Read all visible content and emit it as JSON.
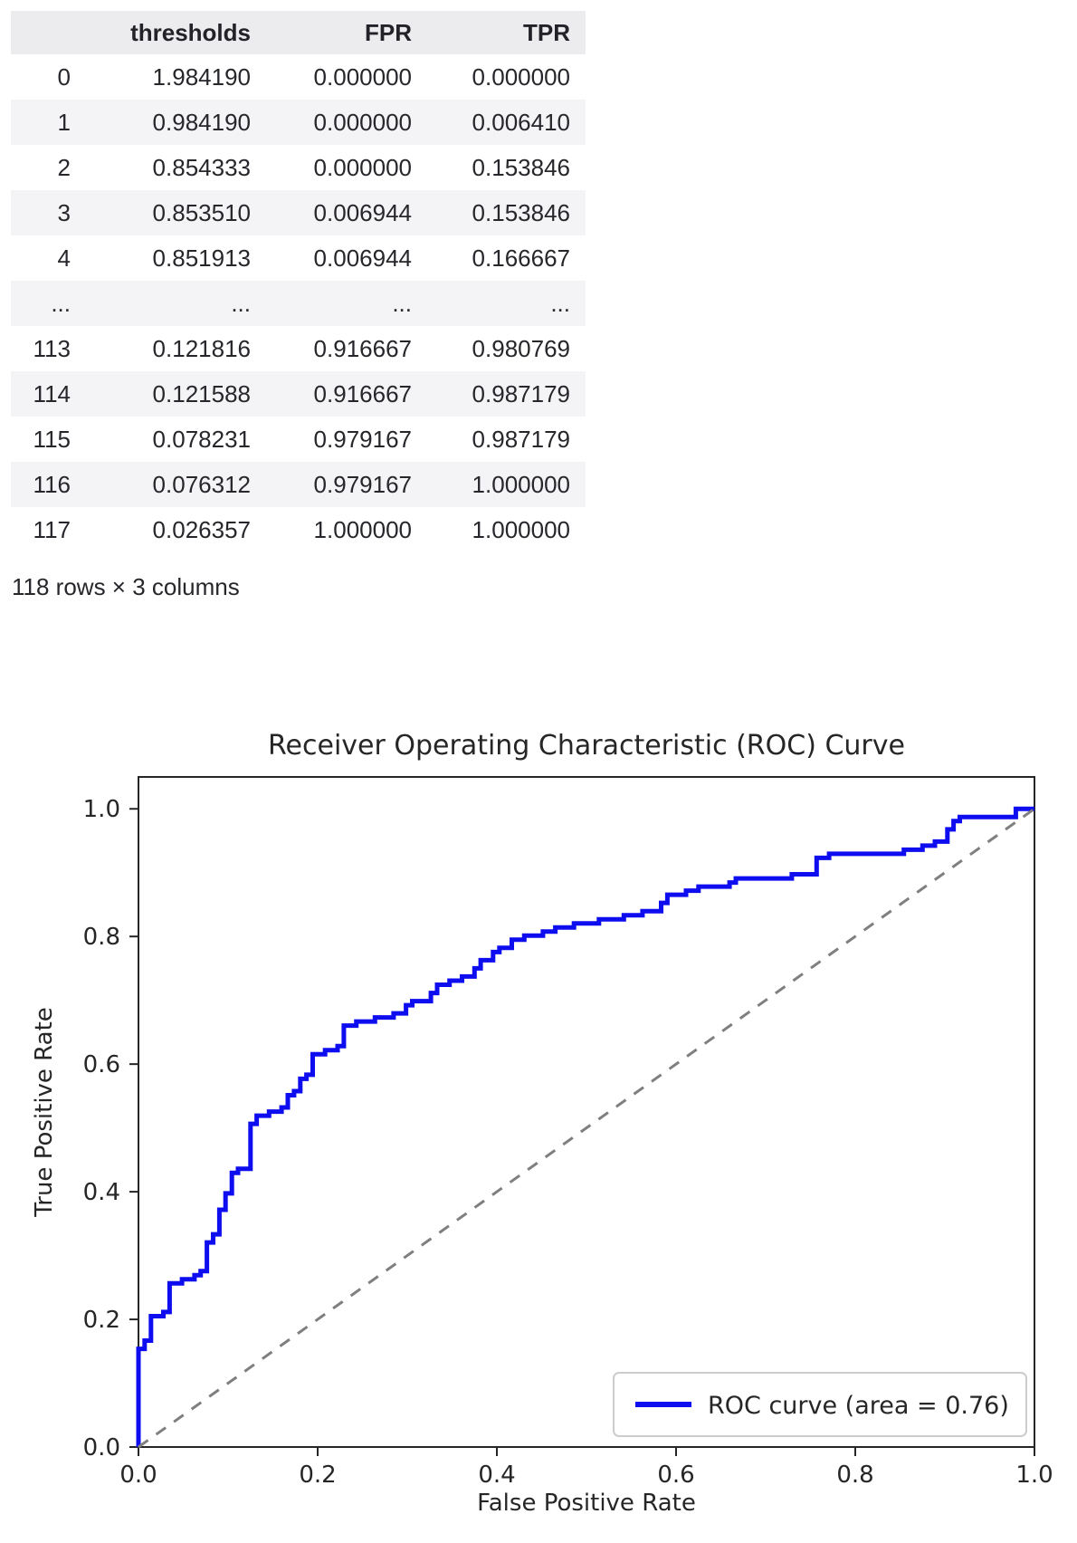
{
  "table": {
    "columns": [
      "thresholds",
      "FPR",
      "TPR"
    ],
    "rows": [
      {
        "index": "0",
        "cells": [
          "1.984190",
          "0.000000",
          "0.000000"
        ]
      },
      {
        "index": "1",
        "cells": [
          "0.984190",
          "0.000000",
          "0.006410"
        ]
      },
      {
        "index": "2",
        "cells": [
          "0.854333",
          "0.000000",
          "0.153846"
        ]
      },
      {
        "index": "3",
        "cells": [
          "0.853510",
          "0.006944",
          "0.153846"
        ]
      },
      {
        "index": "4",
        "cells": [
          "0.851913",
          "0.006944",
          "0.166667"
        ]
      },
      {
        "index": "...",
        "cells": [
          "...",
          "...",
          "..."
        ]
      },
      {
        "index": "113",
        "cells": [
          "0.121816",
          "0.916667",
          "0.980769"
        ]
      },
      {
        "index": "114",
        "cells": [
          "0.121588",
          "0.916667",
          "0.987179"
        ]
      },
      {
        "index": "115",
        "cells": [
          "0.078231",
          "0.979167",
          "0.987179"
        ]
      },
      {
        "index": "116",
        "cells": [
          "0.076312",
          "0.979167",
          "1.000000"
        ]
      },
      {
        "index": "117",
        "cells": [
          "0.026357",
          "1.000000",
          "1.000000"
        ]
      }
    ],
    "summary": "118 rows × 3 columns"
  },
  "chart_data": {
    "type": "line",
    "title": "Receiver Operating Characteristic (ROC) Curve",
    "xlabel": "False Positive Rate",
    "ylabel": "True Positive Rate",
    "xlim": [
      0.0,
      1.0
    ],
    "ylim": [
      0.0,
      1.05
    ],
    "xticks": [
      "0.0",
      "0.2",
      "0.4",
      "0.6",
      "0.8",
      "1.0"
    ],
    "yticks": [
      "0.0",
      "0.2",
      "0.4",
      "0.6",
      "0.8",
      "1.0"
    ],
    "grid": false,
    "legend": {
      "label": "ROC curve (area = 0.76)",
      "position": "lower right"
    },
    "auc": 0.76,
    "series": [
      {
        "name": "ROC curve",
        "color": "#0d0df0",
        "style": "solid",
        "points": [
          [
            0.0,
            0.0
          ],
          [
            0.0,
            0.1538
          ],
          [
            0.0069,
            0.1538
          ],
          [
            0.0069,
            0.1667
          ],
          [
            0.0139,
            0.1667
          ],
          [
            0.0139,
            0.2051
          ],
          [
            0.0278,
            0.2051
          ],
          [
            0.0278,
            0.2115
          ],
          [
            0.0347,
            0.2115
          ],
          [
            0.0347,
            0.2564
          ],
          [
            0.0486,
            0.2564
          ],
          [
            0.0486,
            0.2628
          ],
          [
            0.0625,
            0.2628
          ],
          [
            0.0625,
            0.2692
          ],
          [
            0.0694,
            0.2692
          ],
          [
            0.0694,
            0.2756
          ],
          [
            0.0764,
            0.2756
          ],
          [
            0.0764,
            0.3205
          ],
          [
            0.0833,
            0.3205
          ],
          [
            0.0833,
            0.3333
          ],
          [
            0.0903,
            0.3333
          ],
          [
            0.0903,
            0.3718
          ],
          [
            0.0972,
            0.3718
          ],
          [
            0.0972,
            0.3974
          ],
          [
            0.1042,
            0.3974
          ],
          [
            0.1042,
            0.4295
          ],
          [
            0.1111,
            0.4295
          ],
          [
            0.1111,
            0.4359
          ],
          [
            0.125,
            0.4359
          ],
          [
            0.125,
            0.5064
          ],
          [
            0.1319,
            0.5064
          ],
          [
            0.1319,
            0.5192
          ],
          [
            0.1458,
            0.5192
          ],
          [
            0.1458,
            0.5256
          ],
          [
            0.1597,
            0.5256
          ],
          [
            0.1597,
            0.5321
          ],
          [
            0.1667,
            0.5321
          ],
          [
            0.1667,
            0.5513
          ],
          [
            0.1736,
            0.5513
          ],
          [
            0.1736,
            0.5577
          ],
          [
            0.1806,
            0.5577
          ],
          [
            0.1806,
            0.5769
          ],
          [
            0.1875,
            0.5769
          ],
          [
            0.1875,
            0.5833
          ],
          [
            0.1944,
            0.5833
          ],
          [
            0.1944,
            0.6154
          ],
          [
            0.2083,
            0.6154
          ],
          [
            0.2083,
            0.6218
          ],
          [
            0.2222,
            0.6218
          ],
          [
            0.2222,
            0.6282
          ],
          [
            0.2292,
            0.6282
          ],
          [
            0.2292,
            0.6603
          ],
          [
            0.2431,
            0.6603
          ],
          [
            0.2431,
            0.6667
          ],
          [
            0.2639,
            0.6667
          ],
          [
            0.2639,
            0.6731
          ],
          [
            0.2847,
            0.6731
          ],
          [
            0.2847,
            0.6795
          ],
          [
            0.2986,
            0.6795
          ],
          [
            0.2986,
            0.6923
          ],
          [
            0.3056,
            0.6923
          ],
          [
            0.3056,
            0.6987
          ],
          [
            0.3264,
            0.6987
          ],
          [
            0.3264,
            0.7115
          ],
          [
            0.3333,
            0.7115
          ],
          [
            0.3333,
            0.7244
          ],
          [
            0.3472,
            0.7244
          ],
          [
            0.3472,
            0.7308
          ],
          [
            0.3611,
            0.7308
          ],
          [
            0.3611,
            0.7372
          ],
          [
            0.375,
            0.7372
          ],
          [
            0.375,
            0.75
          ],
          [
            0.3819,
            0.75
          ],
          [
            0.3819,
            0.7628
          ],
          [
            0.3958,
            0.7628
          ],
          [
            0.3958,
            0.7756
          ],
          [
            0.4028,
            0.7756
          ],
          [
            0.4028,
            0.7821
          ],
          [
            0.4167,
            0.7821
          ],
          [
            0.4167,
            0.7949
          ],
          [
            0.4306,
            0.7949
          ],
          [
            0.4306,
            0.8013
          ],
          [
            0.4514,
            0.8013
          ],
          [
            0.4514,
            0.8077
          ],
          [
            0.4653,
            0.8077
          ],
          [
            0.4653,
            0.8141
          ],
          [
            0.4861,
            0.8141
          ],
          [
            0.4861,
            0.8205
          ],
          [
            0.5139,
            0.8205
          ],
          [
            0.5139,
            0.8269
          ],
          [
            0.5417,
            0.8269
          ],
          [
            0.5417,
            0.8333
          ],
          [
            0.5625,
            0.8333
          ],
          [
            0.5625,
            0.8397
          ],
          [
            0.5833,
            0.8397
          ],
          [
            0.5833,
            0.8526
          ],
          [
            0.5903,
            0.8526
          ],
          [
            0.5903,
            0.8654
          ],
          [
            0.6111,
            0.8654
          ],
          [
            0.6111,
            0.8718
          ],
          [
            0.625,
            0.8718
          ],
          [
            0.625,
            0.8782
          ],
          [
            0.6597,
            0.8782
          ],
          [
            0.6597,
            0.8846
          ],
          [
            0.6667,
            0.8846
          ],
          [
            0.6667,
            0.891
          ],
          [
            0.7292,
            0.891
          ],
          [
            0.7292,
            0.8974
          ],
          [
            0.7569,
            0.8974
          ],
          [
            0.7569,
            0.9231
          ],
          [
            0.7708,
            0.9231
          ],
          [
            0.7708,
            0.9295
          ],
          [
            0.8542,
            0.9295
          ],
          [
            0.8542,
            0.9359
          ],
          [
            0.875,
            0.9359
          ],
          [
            0.875,
            0.9423
          ],
          [
            0.8889,
            0.9423
          ],
          [
            0.8889,
            0.9487
          ],
          [
            0.9028,
            0.9487
          ],
          [
            0.9028,
            0.9679
          ],
          [
            0.9097,
            0.9679
          ],
          [
            0.9097,
            0.9808
          ],
          [
            0.9167,
            0.9808
          ],
          [
            0.9167,
            0.9872
          ],
          [
            0.9792,
            0.9872
          ],
          [
            0.9792,
            1.0
          ],
          [
            1.0,
            1.0
          ]
        ]
      },
      {
        "name": "chance diagonal",
        "color": "#7f7f7f",
        "style": "dashed",
        "points": [
          [
            0.0,
            0.0
          ],
          [
            1.0,
            1.0
          ]
        ]
      }
    ]
  },
  "colors": {
    "table_header_bg": "#ececee",
    "table_stripe_bg": "#f4f4f6",
    "text": "#26262b",
    "roc_blue": "#0d0df0",
    "diagonal_gray": "#7f7f7f",
    "spine": "#262626",
    "legend_border": "#cccccc"
  }
}
